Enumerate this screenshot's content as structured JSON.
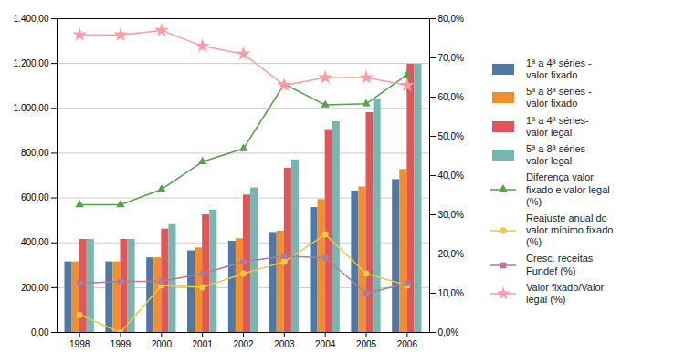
{
  "chart_data": {
    "type": "bar",
    "categories": [
      "1998",
      "1999",
      "2000",
      "2001",
      "2002",
      "2003",
      "2004",
      "2005",
      "2006"
    ],
    "series": [
      {
        "name": "1ª a 4ª séries -\nvalor fixado",
        "type": "bar",
        "values": [
          315,
          315,
          333,
          364,
          407,
          446,
          557,
          631,
          682
        ]
      },
      {
        "name": "5ª a 8ª séries -\nvalor fixado",
        "type": "bar",
        "values": [
          315,
          315,
          333,
          377,
          418,
          452,
          593,
          649,
          727
        ]
      },
      {
        "name": "1ª a 4ª séries-\nvalor legal",
        "type": "bar",
        "values": [
          415,
          415,
          461,
          525,
          613,
          733,
          905,
          981,
          1197
        ]
      },
      {
        "name": "5ª a 8ª séries -\nvalor legal",
        "type": "bar",
        "values": [
          415,
          415,
          481,
          546,
          645,
          770,
          940,
          1042,
          1197
        ]
      },
      {
        "name": "Diferença valor\nfixado e valor legal\n(%)",
        "type": "line",
        "marker": "triangle",
        "values": [
          570,
          570,
          638,
          762,
          820,
          1108,
          1015,
          1020,
          1150
        ]
      },
      {
        "name": "Reajuste anual do\nvalor mínimo fixado\n(%)",
        "type": "line",
        "marker": "circle",
        "axis": "y2",
        "values": [
          4.5,
          0.0,
          12.0,
          11.5,
          15.0,
          18.0,
          25.0,
          15.0,
          12.0
        ]
      },
      {
        "name": "Cresc. receitas\nFundef (%)",
        "type": "line",
        "marker": "square",
        "axis": "y2",
        "values": [
          12.5,
          13.0,
          13.0,
          15.0,
          18.0,
          19.5,
          19.0,
          10.0,
          12.5
        ]
      },
      {
        "name": "Valor fixado/Valor\nlegal (%)",
        "type": "line",
        "marker": "star",
        "axis": "y2",
        "values": [
          75.9,
          75.9,
          77.0,
          73.0,
          71.0,
          63.0,
          65.0,
          65.0,
          63.0
        ]
      }
    ],
    "ylim": [
      0,
      1400
    ],
    "yticks": [
      {
        "value": 0,
        "label": "0,00"
      },
      {
        "value": 200,
        "label": "200,00"
      },
      {
        "value": 400,
        "label": "400,00"
      },
      {
        "value": 600,
        "label": "600,00"
      },
      {
        "value": 800,
        "label": "800,00"
      },
      {
        "value": 1000,
        "label": "1.000,00"
      },
      {
        "value": 1200,
        "label": "1.200,00"
      },
      {
        "value": 1400,
        "label": "1.400,00"
      }
    ],
    "y2lim": [
      0,
      80
    ],
    "y2ticks": [
      {
        "value": 0,
        "label": "0,0%"
      },
      {
        "value": 10,
        "label": "10,0%"
      },
      {
        "value": 20,
        "label": "20,0%"
      },
      {
        "value": 30,
        "label": "30,0%"
      },
      {
        "value": 40,
        "label": "40,0%"
      },
      {
        "value": 50,
        "label": "50,0%"
      },
      {
        "value": 60,
        "label": "60,0%"
      },
      {
        "value": 70,
        "label": "70,0%"
      },
      {
        "value": 80,
        "label": "80,0%"
      }
    ],
    "grid": true
  }
}
